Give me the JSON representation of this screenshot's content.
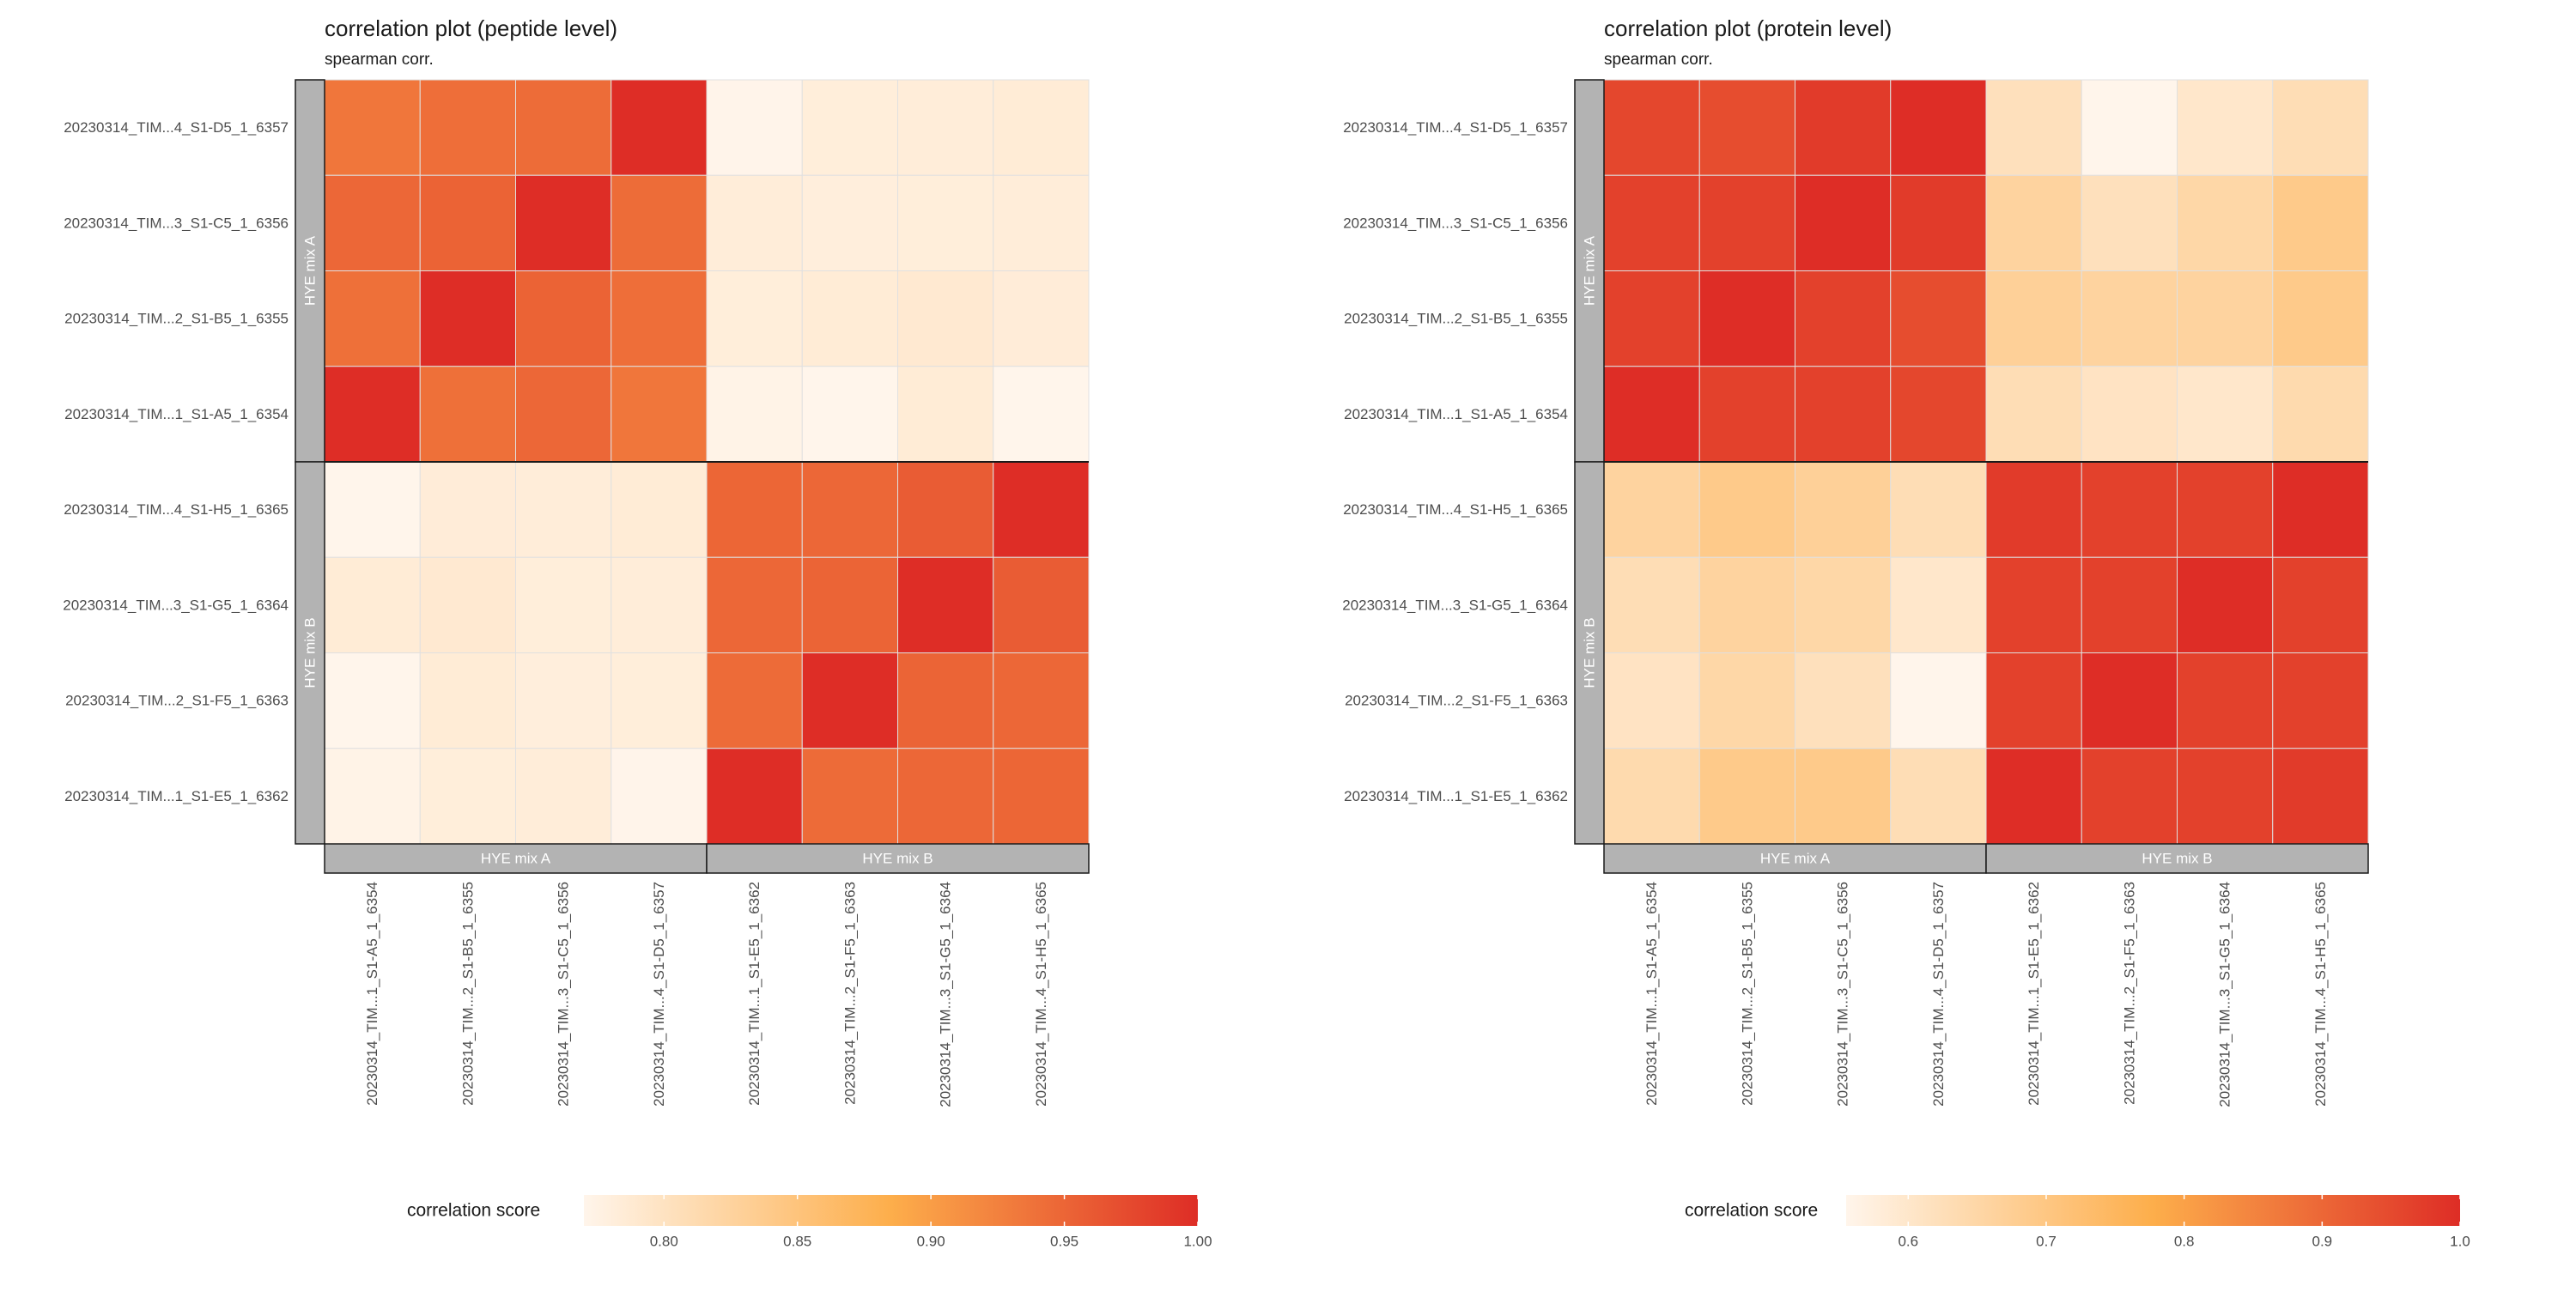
{
  "chart_data": [
    {
      "type": "heatmap",
      "title": "correlation plot (peptide level)",
      "subtitle": "spearman corr.",
      "row_labels": [
        "20230314_TIM...4_S1-D5_1_6357",
        "20230314_TIM...3_S1-C5_1_6356",
        "20230314_TIM...2_S1-B5_1_6355",
        "20230314_TIM...1_S1-A5_1_6354",
        "20230314_TIM...4_S1-H5_1_6365",
        "20230314_TIM...3_S1-G5_1_6364",
        "20230314_TIM...2_S1-F5_1_6363",
        "20230314_TIM...1_S1-E5_1_6362"
      ],
      "col_labels": [
        "20230314_TIM...1_S1-A5_1_6354",
        "20230314_TIM...2_S1-B5_1_6355",
        "20230314_TIM...3_S1-C5_1_6356",
        "20230314_TIM...4_S1-D5_1_6357",
        "20230314_TIM...1_S1-E5_1_6362",
        "20230314_TIM...2_S1-F5_1_6363",
        "20230314_TIM...3_S1-G5_1_6364",
        "20230314_TIM...4_S1-H5_1_6365"
      ],
      "row_groups": [
        {
          "label": "HYE mix A",
          "count": 4
        },
        {
          "label": "HYE mix B",
          "count": 4
        }
      ],
      "col_groups": [
        {
          "label": "HYE mix A",
          "count": 4
        },
        {
          "label": "HYE mix B",
          "count": 4
        }
      ],
      "values": [
        [
          0.935,
          0.942,
          0.944,
          1.0,
          0.771,
          0.782,
          0.783,
          0.785
        ],
        [
          0.948,
          0.952,
          1.0,
          0.944,
          0.783,
          0.781,
          0.782,
          0.783
        ],
        [
          0.94,
          1.0,
          0.952,
          0.942,
          0.782,
          0.785,
          0.789,
          0.784
        ],
        [
          1.0,
          0.94,
          0.948,
          0.935,
          0.773,
          0.77,
          0.785,
          0.77
        ],
        [
          0.77,
          0.784,
          0.783,
          0.785,
          0.949,
          0.948,
          0.958,
          1.0
        ],
        [
          0.785,
          0.789,
          0.782,
          0.783,
          0.948,
          0.951,
          1.0,
          0.958
        ],
        [
          0.77,
          0.785,
          0.781,
          0.782,
          0.945,
          1.0,
          0.951,
          0.948
        ],
        [
          0.773,
          0.782,
          0.783,
          0.771,
          1.0,
          0.945,
          0.948,
          0.949
        ]
      ],
      "legend": {
        "title": "correlation score",
        "min": 0.77,
        "max": 1.0,
        "ticks": [
          0.8,
          0.85,
          0.9,
          0.95,
          1.0
        ],
        "tick_labels": [
          "0.80",
          "0.85",
          "0.90",
          "0.95",
          "1.00"
        ]
      }
    },
    {
      "type": "heatmap",
      "title": "correlation plot (protein level)",
      "subtitle": "spearman corr.",
      "row_labels": [
        "20230314_TIM...4_S1-D5_1_6357",
        "20230314_TIM...3_S1-C5_1_6356",
        "20230314_TIM...2_S1-B5_1_6355",
        "20230314_TIM...1_S1-A5_1_6354",
        "20230314_TIM...4_S1-H5_1_6365",
        "20230314_TIM...3_S1-G5_1_6364",
        "20230314_TIM...2_S1-F5_1_6363",
        "20230314_TIM...1_S1-E5_1_6362"
      ],
      "col_labels": [
        "20230314_TIM...1_S1-A5_1_6354",
        "20230314_TIM...2_S1-B5_1_6355",
        "20230314_TIM...3_S1-C5_1_6356",
        "20230314_TIM...4_S1-D5_1_6357",
        "20230314_TIM...1_S1-E5_1_6362",
        "20230314_TIM...2_S1-F5_1_6363",
        "20230314_TIM...3_S1-G5_1_6364",
        "20230314_TIM...4_S1-H5_1_6365"
      ],
      "row_groups": [
        {
          "label": "HYE mix A",
          "count": 4
        },
        {
          "label": "HYE mix B",
          "count": 4
        }
      ],
      "col_groups": [
        {
          "label": "HYE mix A",
          "count": 4
        },
        {
          "label": "HYE mix B",
          "count": 4
        }
      ],
      "values": [
        [
          0.955,
          0.945,
          0.975,
          1.0,
          0.62,
          0.555,
          0.6,
          0.63
        ],
        [
          0.965,
          0.965,
          1.0,
          0.975,
          0.66,
          0.62,
          0.65,
          0.69
        ],
        [
          0.965,
          1.0,
          0.965,
          0.945,
          0.67,
          0.66,
          0.66,
          0.69
        ],
        [
          1.0,
          0.965,
          0.965,
          0.955,
          0.63,
          0.61,
          0.6,
          0.64
        ],
        [
          0.66,
          0.69,
          0.67,
          0.63,
          0.975,
          0.965,
          0.965,
          1.0
        ],
        [
          0.63,
          0.66,
          0.65,
          0.6,
          0.965,
          0.965,
          1.0,
          0.965
        ],
        [
          0.61,
          0.65,
          0.62,
          0.555,
          0.965,
          1.0,
          0.965,
          0.965
        ],
        [
          0.64,
          0.69,
          0.69,
          0.63,
          1.0,
          0.965,
          0.965,
          0.975
        ]
      ],
      "legend": {
        "title": "correlation score",
        "min": 0.555,
        "max": 1.0,
        "ticks": [
          0.6,
          0.7,
          0.8,
          0.9,
          1.0
        ],
        "tick_labels": [
          "0.6",
          "0.7",
          "0.8",
          "0.9",
          "1.0"
        ]
      }
    }
  ],
  "colors": {
    "scale": [
      "#fff5eb",
      "#fdae4b",
      "#de2d26"
    ],
    "strip_fill": "#b3b3b3",
    "strip_border": "#1a1a1a",
    "strip_text": "#ffffff",
    "cell_border": "#e0e0e0",
    "text": "#1a1a1a",
    "axis_text": "#4d4d4d"
  }
}
